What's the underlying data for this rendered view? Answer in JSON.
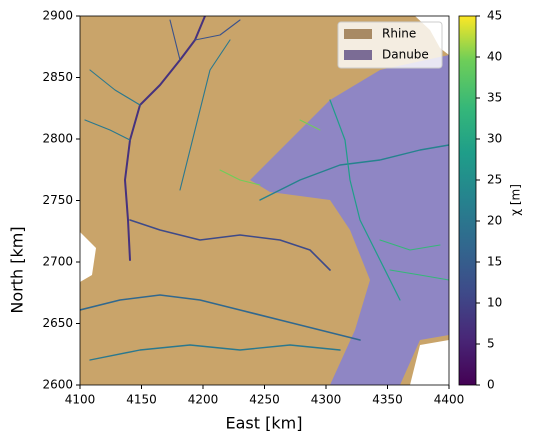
{
  "chart_data": {
    "type": "map",
    "xlabel": "East [km]",
    "ylabel": "North [km]",
    "xlim": [
      4100,
      4400
    ],
    "xticks": [
      4100,
      4150,
      4200,
      4250,
      4300,
      4350,
      4400
    ],
    "ylim": [
      2600,
      2900
    ],
    "yticks": [
      2600,
      2650,
      2700,
      2750,
      2800,
      2850,
      2900
    ],
    "legend_position": "upper right",
    "series": [
      {
        "name": "Rhine",
        "color": "#a88a64"
      },
      {
        "name": "Danube",
        "color": "#7b6c95"
      }
    ],
    "colorbar": {
      "label": "χ [m]",
      "lim": [
        0,
        45
      ],
      "ticks": [
        0,
        5,
        10,
        15,
        20,
        25,
        30,
        35,
        40,
        45
      ],
      "colormap": "viridis"
    }
  }
}
